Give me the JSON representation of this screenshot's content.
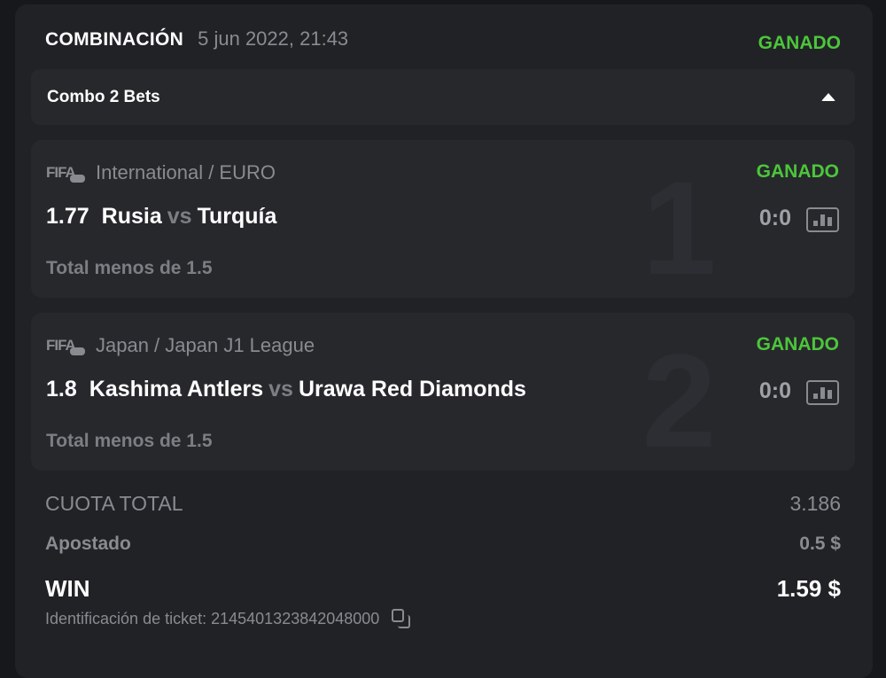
{
  "header": {
    "title": "COMBINACIÓN",
    "datetime": "5 jun 2022, 21:43",
    "status": "GANADO"
  },
  "combo": {
    "label": "Combo 2 Bets",
    "toggle_icon": "caret-up-icon"
  },
  "bets": [
    {
      "index": "1",
      "sport": "FIFA",
      "league": "International / EURO",
      "status": "GANADO",
      "odd": "1.77",
      "home": "Rusia",
      "vs": "vs",
      "away": "Turquía",
      "score": "0:0",
      "market": "Total menos de 1.5"
    },
    {
      "index": "2",
      "sport": "FIFA",
      "league": "Japan / Japan J1 League",
      "status": "GANADO",
      "odd": "1.8",
      "home": "Kashima Antlers",
      "vs": "vs",
      "away": "Urawa Red Diamonds",
      "score": "0:0",
      "market": "Total menos de 1.5"
    }
  ],
  "summary": {
    "total_odds_label": "CUOTA TOTAL",
    "total_odds": "3.186",
    "stake_label": "Apostado",
    "stake": "0.5 $",
    "win_label": "WIN",
    "win": "1.59 $",
    "ticket_label": "Identificación de ticket: 2145401323842048000"
  },
  "colors": {
    "won": "#4cc63b",
    "card": "#212226",
    "inner": "#27282c"
  }
}
